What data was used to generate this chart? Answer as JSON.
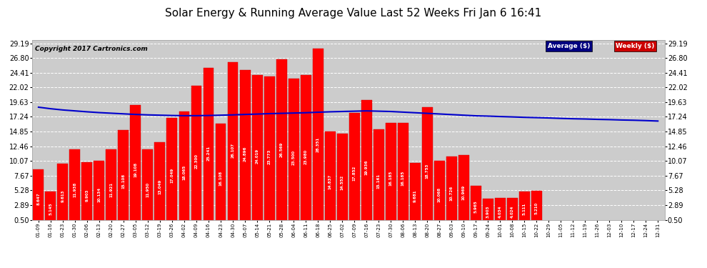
{
  "title": "Solar Energy & Running Average Value Last 52 Weeks Fri Jan 6 16:41",
  "copyright": "Copyright 2017 Cartronics.com",
  "bar_color": "#ff0000",
  "bar_edge_color": "#cc0000",
  "avg_line_color": "#0000cc",
  "background_color": "#ffffff",
  "plot_bg_color": "#cccccc",
  "grid_color": "#ffffff",
  "ytick_labels": [
    "0.50",
    "2.89",
    "5.28",
    "7.67",
    "10.07",
    "12.46",
    "14.85",
    "17.24",
    "19.63",
    "22.02",
    "24.41",
    "26.80",
    "29.19"
  ],
  "ytick_values": [
    0.5,
    2.89,
    5.28,
    7.67,
    10.07,
    12.46,
    14.85,
    17.24,
    19.63,
    22.02,
    24.41,
    26.8,
    29.19
  ],
  "categories": [
    "01-09",
    "01-16",
    "01-23",
    "01-30",
    "02-06",
    "02-13",
    "02-20",
    "02-27",
    "03-05",
    "03-12",
    "03-19",
    "03-26",
    "04-02",
    "04-09",
    "04-16",
    "04-23",
    "04-30",
    "05-07",
    "05-14",
    "05-21",
    "05-28",
    "06-04",
    "06-11",
    "06-18",
    "06-25",
    "07-02",
    "07-09",
    "07-16",
    "07-23",
    "07-30",
    "08-06",
    "08-13",
    "08-20",
    "08-27",
    "09-03",
    "09-10",
    "09-17",
    "09-24",
    "10-01",
    "10-08",
    "10-15",
    "10-22",
    "10-29",
    "11-05",
    "11-12",
    "11-19",
    "11-26",
    "12-03",
    "12-10",
    "12-17",
    "12-24",
    "12-31"
  ],
  "weekly_values": [
    8.647,
    5.145,
    9.613,
    11.938,
    9.903,
    10.134,
    11.921,
    15.108,
    19.108,
    11.95,
    13.049,
    17.049,
    18.065,
    22.3,
    25.241,
    16.108,
    26.107,
    24.896,
    24.019,
    23.773,
    26.569,
    23.5,
    23.98,
    28.351,
    14.837,
    14.552,
    17.852,
    19.936,
    15.161,
    16.185,
    16.185,
    9.681,
    18.753,
    10.068,
    10.726,
    10.969,
    5.965,
    3.903,
    4.034,
    4.024,
    5.111,
    5.21,
    0,
    0,
    0,
    0,
    0,
    0,
    0,
    0,
    0,
    0
  ],
  "avg_values": [
    18.8,
    18.55,
    18.35,
    18.2,
    18.05,
    17.92,
    17.82,
    17.72,
    17.62,
    17.55,
    17.5,
    17.45,
    17.42,
    17.42,
    17.45,
    17.5,
    17.55,
    17.62,
    17.68,
    17.75,
    17.8,
    17.85,
    17.9,
    17.98,
    18.05,
    18.1,
    18.15,
    18.2,
    18.15,
    18.1,
    18.0,
    17.9,
    17.8,
    17.7,
    17.6,
    17.5,
    17.4,
    17.35,
    17.28,
    17.22,
    17.15,
    17.1,
    17.05,
    16.98,
    16.92,
    16.88,
    16.82,
    16.78,
    16.72,
    16.68,
    16.62,
    16.55
  ],
  "ymin": 0.5,
  "ymax": 29.69,
  "title_fontsize": 11,
  "copyright_fontsize": 6.5
}
